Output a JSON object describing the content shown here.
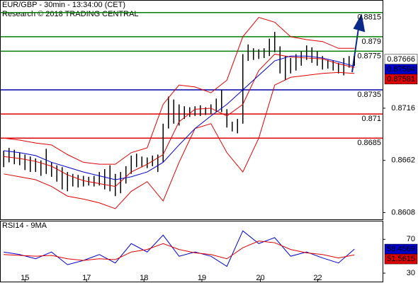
{
  "chart_data": [
    {
      "type": "ohlc",
      "title": "EUR/GBP - 30min - 13:34:00 (CET)",
      "subtitle": "Research © 2018 TRADING CENTRAL",
      "xlim": [
        -0.7,
        71.3
      ],
      "ylim": [
        0.8601,
        0.8828
      ],
      "xticks": [
        {
          "value": 4,
          "label": "15"
        },
        {
          "value": 15.6,
          "label": "17"
        },
        {
          "value": 26.4,
          "label": "18"
        },
        {
          "value": 37.3,
          "label": "19"
        },
        {
          "value": 48.3,
          "label": "20"
        },
        {
          "value": 59.1,
          "label": "22"
        }
      ],
      "yticks": [
        0.8716,
        0.8662,
        0.8608
      ],
      "bar_color": "#000000",
      "highs": [
        0.8672,
        0.8675,
        0.8673,
        0.867,
        0.8668,
        0.8666,
        0.8664,
        0.8662,
        0.8674,
        0.866,
        0.8657,
        0.8655,
        0.865,
        0.8648,
        0.8647,
        0.8646,
        0.8645,
        0.8646,
        0.865,
        0.8653,
        0.8657,
        0.8648,
        0.865,
        0.8656,
        0.8667,
        0.8669,
        0.8666,
        0.8665,
        0.8667,
        0.8668,
        0.87,
        0.8728,
        0.8725,
        0.872,
        0.8718,
        0.8717,
        0.8718,
        0.8719,
        0.8717,
        0.872,
        0.8726,
        0.8735,
        0.8715,
        0.8702,
        0.8705,
        0.8772,
        0.8782,
        0.8778,
        0.8777,
        0.8778,
        0.8788,
        0.8795,
        0.878,
        0.877,
        0.8768,
        0.8772,
        0.8775,
        0.8781,
        0.8779,
        0.8775,
        0.877,
        0.8766,
        0.8765,
        0.8763,
        0.8768,
        0.877,
        0.877
      ],
      "lows": [
        0.8655,
        0.866,
        0.8658,
        0.8657,
        0.8652,
        0.865,
        0.865,
        0.8646,
        0.8648,
        0.8645,
        0.864,
        0.8632,
        0.863,
        0.8635,
        0.8634,
        0.8635,
        0.8636,
        0.8635,
        0.8636,
        0.8632,
        0.863,
        0.8625,
        0.8628,
        0.8638,
        0.8648,
        0.8655,
        0.8655,
        0.8654,
        0.8656,
        0.865,
        0.866,
        0.8695,
        0.87,
        0.8698,
        0.8705,
        0.8707,
        0.8708,
        0.8708,
        0.8709,
        0.871,
        0.8712,
        0.8712,
        0.8696,
        0.8692,
        0.869,
        0.87,
        0.8765,
        0.8766,
        0.8767,
        0.8768,
        0.877,
        0.8774,
        0.8752,
        0.8745,
        0.8752,
        0.8755,
        0.876,
        0.8766,
        0.8763,
        0.876,
        0.8756,
        0.8757,
        0.8755,
        0.8752,
        0.875,
        0.8758,
        0.876
      ],
      "x": [
        0,
        3,
        6,
        9,
        12,
        15,
        18,
        21,
        24,
        27,
        30,
        33,
        36,
        39,
        42,
        45,
        48,
        51,
        54,
        57,
        60,
        63,
        66
      ],
      "series": [
        {
          "color": "#dd0000",
          "values": [
            0.8685,
            0.8683,
            0.868,
            0.8678,
            0.8668,
            0.866,
            0.8658,
            0.8658,
            0.867,
            0.8675,
            0.872,
            0.874,
            0.8738,
            0.8732,
            0.8745,
            0.879,
            0.881,
            0.8805,
            0.879,
            0.8787,
            0.8785,
            0.8778,
            0.8778
          ]
        },
        {
          "color": "#dd0000",
          "values": [
            0.8648,
            0.8645,
            0.8642,
            0.8635,
            0.8625,
            0.8622,
            0.8618,
            0.8612,
            0.863,
            0.864,
            0.862,
            0.866,
            0.8695,
            0.87,
            0.867,
            0.865,
            0.8685,
            0.874,
            0.8748,
            0.875,
            0.8752,
            0.8753,
            0.8752
          ]
        },
        {
          "color": "#dd0000",
          "values": [
            0.8666,
            0.8664,
            0.8661,
            0.8656,
            0.8647,
            0.8641,
            0.8638,
            0.8635,
            0.865,
            0.8658,
            0.8668,
            0.8702,
            0.8715,
            0.8716,
            0.8708,
            0.872,
            0.8755,
            0.8772,
            0.8769,
            0.8768,
            0.8767,
            0.8762,
            0.87581
          ]
        },
        {
          "color": "#0000cc",
          "values": [
            0.8672,
            0.867,
            0.8667,
            0.866,
            0.8655,
            0.865,
            0.8646,
            0.8642,
            0.8645,
            0.865,
            0.866,
            0.8678,
            0.8695,
            0.8708,
            0.872,
            0.8735,
            0.875,
            0.8765,
            0.877,
            0.877,
            0.8768,
            0.8764,
            0.87594
          ]
        }
      ],
      "levels": [
        {
          "value": 0.8815,
          "color": "#008000"
        },
        {
          "value": 0.879,
          "color": "#008000"
        },
        {
          "value": 0.8775,
          "color": "#008000"
        },
        {
          "value": 0.8735,
          "color": "#0000aa"
        },
        {
          "value": 0.871,
          "color": "#dd0000"
        },
        {
          "value": 0.8685,
          "color": "#dd0000"
        }
      ],
      "current_price": 0.87666
    },
    {
      "type": "line",
      "title": "RSI14 - 9MA",
      "ylim": [
        20,
        92
      ],
      "yticks": [
        70,
        30
      ],
      "x": [
        0,
        3,
        6,
        9,
        12,
        15,
        18,
        21,
        24,
        27,
        30,
        33,
        36,
        39,
        42,
        45,
        48,
        51,
        54,
        57,
        60,
        63,
        66
      ],
      "series": [
        {
          "color": "#0000cc",
          "values": [
            55,
            52,
            47,
            55,
            40,
            45,
            52,
            42,
            65,
            55,
            75,
            50,
            55,
            50,
            38,
            80,
            65,
            72,
            50,
            55,
            48,
            42,
            58.4569
          ]
        },
        {
          "color": "#dd0000",
          "values": [
            52,
            51,
            50,
            51,
            47,
            45,
            47,
            46,
            55,
            58,
            65,
            58,
            54,
            52,
            47,
            60,
            68,
            66,
            58,
            54,
            52,
            48,
            51.5615
          ]
        }
      ]
    }
  ]
}
